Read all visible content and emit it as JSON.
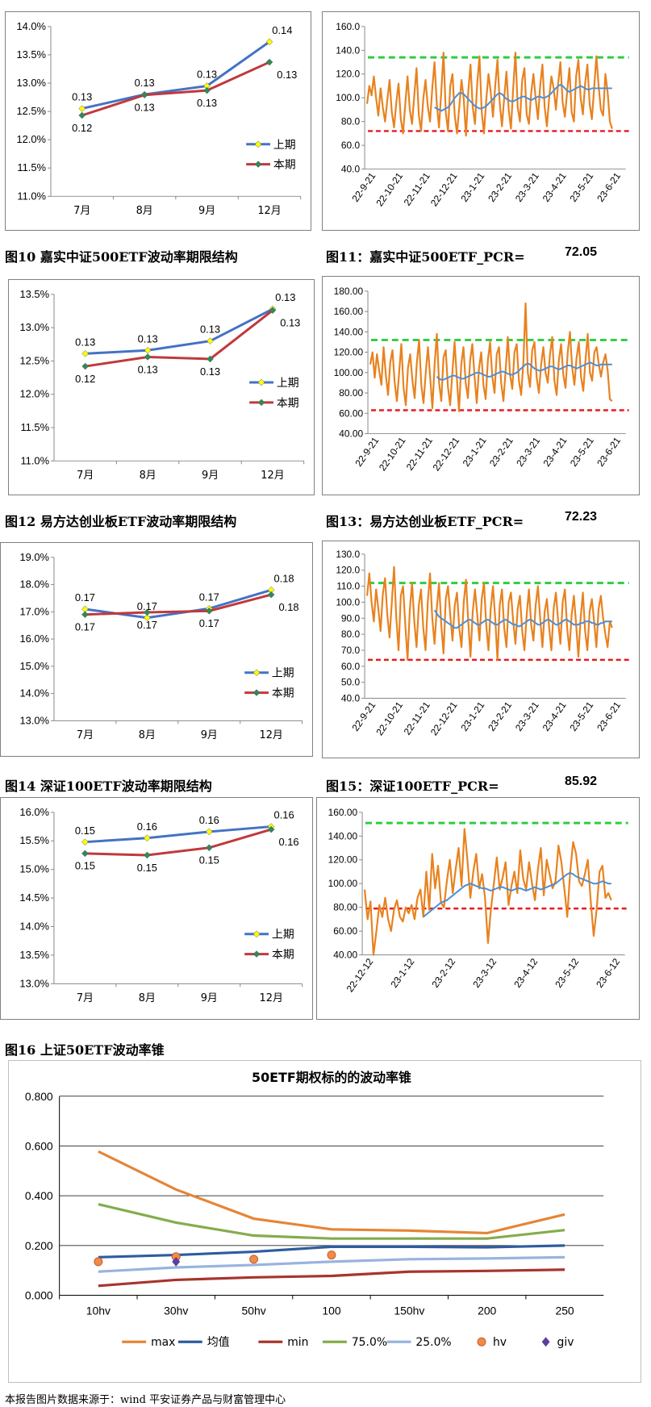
{
  "captions": {
    "fig10": "图10  嘉实中证500ETF波动率期限结构",
    "fig11": "图11：嘉实中证500ETF_PCR=",
    "fig11_value": "72.05",
    "fig12": "图12  易方达创业板ETF波动率期限结构",
    "fig13": "图13：易方达创业板ETF_PCR=",
    "fig13_value": "72.23",
    "fig14": "图14  深证100ETF波动率期限结构",
    "fig15": "图15：深证100ETF_PCR=",
    "fig15_value": "85.92",
    "fig16": "图16  上证50ETF波动率锥"
  },
  "footer": "本报告图片数据来源于：wind 平安证券产品与财富管理中心",
  "colors": {
    "blue": "#4472C4",
    "red": "#C0393B",
    "orange": "#E8821E",
    "green": "#2ECC40",
    "dash_red": "#E8191E",
    "pcr_blue": "#4B8FD6",
    "cone_orange": "#E58536",
    "cone_navy": "#2E5C9E",
    "cone_darkred": "#A8342E",
    "cone_green": "#84AC4D",
    "cone_lightblue": "#98B4DE",
    "cone_purple": "#5B3FA2"
  },
  "chart_data": [
    {
      "id": "term1",
      "type": "line",
      "categories": [
        "7月",
        "8月",
        "9月",
        "12月"
      ],
      "ylim": [
        0.11,
        0.14
      ],
      "ytick_labels": [
        "14.0%",
        "13.5%",
        "13.0%",
        "12.5%",
        "12.0%",
        "11.5%",
        "11.0%"
      ],
      "series": [
        {
          "name": "上期",
          "values": [
            0.1255,
            0.128,
            0.1295,
            0.1373
          ],
          "labels": [
            "0.13",
            "0.13",
            "0.13",
            "0.14"
          ]
        },
        {
          "name": "本期",
          "values": [
            0.1243,
            0.1279,
            0.1287,
            0.1337
          ],
          "labels": [
            "0.12",
            "0.13",
            "0.13",
            "0.13"
          ]
        }
      ],
      "legend": "bottom-right"
    },
    {
      "id": "pcr1",
      "type": "line",
      "x_tick_labels": [
        "22-9-21",
        "22-10-21",
        "22-11-21",
        "22-12-21",
        "23-1-21",
        "23-2-21",
        "23-3-21",
        "23-4-21",
        "23-5-21",
        "23-6-21"
      ],
      "ylim": [
        40,
        160
      ],
      "ytick_labels": [
        "160.0",
        "140.0",
        "120.0",
        "100.0",
        "80.0",
        "60.0",
        "40.0"
      ],
      "upper_line": 134,
      "lower_line": 72,
      "pcr": [
        95,
        110,
        102,
        118,
        100,
        85,
        108,
        92,
        80,
        98,
        115,
        88,
        75,
        96,
        112,
        82,
        70,
        95,
        118,
        90,
        78,
        102,
        125,
        86,
        72,
        99,
        115,
        93,
        80,
        108,
        130,
        95,
        75,
        105,
        138,
        88,
        72,
        110,
        120,
        85,
        70,
        92,
        115,
        99,
        68,
        105,
        128,
        92,
        78,
        112,
        135,
        88,
        70,
        98,
        120,
        105,
        84,
        110,
        132,
        96,
        76,
        100,
        122,
        90,
        74,
        108,
        138,
        92,
        80,
        115,
        125,
        86,
        78,
        104,
        120,
        99,
        82,
        110,
        128,
        92,
        76,
        100,
        118,
        108,
        90,
        112,
        130,
        96,
        84,
        105,
        125,
        88,
        80,
        118,
        132,
        100,
        86,
        112,
        128,
        95,
        82,
        108,
        135,
        110,
        90,
        85,
        120,
        105,
        80,
        74
      ],
      "ma": [
        null,
        null,
        null,
        null,
        null,
        null,
        null,
        null,
        null,
        null,
        null,
        null,
        null,
        null,
        null,
        null,
        null,
        null,
        null,
        null,
        null,
        null,
        null,
        null,
        null,
        null,
        null,
        null,
        null,
        null,
        92,
        91,
        90,
        89,
        90,
        91,
        92,
        94,
        97,
        100,
        102,
        104,
        104,
        103,
        101,
        99,
        97,
        95,
        93,
        92,
        91,
        91,
        92,
        93,
        95,
        97,
        99,
        101,
        103,
        104,
        103,
        101,
        99,
        98,
        97,
        97,
        98,
        99,
        100,
        101,
        101,
        100,
        99,
        98,
        99,
        100,
        101,
        101,
        100,
        100,
        101,
        102,
        104,
        106,
        108,
        110,
        111,
        110,
        108,
        106,
        105,
        106,
        107,
        108,
        109,
        110,
        109,
        108,
        107,
        107,
        108,
        108,
        108,
        108,
        108,
        108,
        108,
        108,
        108,
        108
      ],
      "note": "approximate series read from the plot"
    },
    {
      "id": "term2",
      "type": "line",
      "categories": [
        "7月",
        "8月",
        "9月",
        "12月"
      ],
      "ylim": [
        0.11,
        0.135
      ],
      "ytick_labels": [
        "13.5%",
        "13.0%",
        "12.5%",
        "12.0%",
        "11.5%",
        "11.0%"
      ],
      "series": [
        {
          "name": "上期",
          "values": [
            0.1261,
            0.1266,
            0.128,
            0.1328
          ],
          "labels": [
            "0.13",
            "0.13",
            "0.13",
            "0.13"
          ]
        },
        {
          "name": "本期",
          "values": [
            0.1242,
            0.1256,
            0.1253,
            0.1326
          ],
          "labels": [
            "0.12",
            "0.13",
            "0.13",
            "0.13"
          ]
        }
      ],
      "legend": "bottom-right"
    },
    {
      "id": "pcr2",
      "type": "line",
      "x_tick_labels": [
        "22-9-21",
        "22-10-21",
        "22-11-21",
        "22-12-21",
        "23-1-21",
        "23-2-21",
        "23-3-21",
        "23-4-21",
        "23-5-21",
        "23-6-21"
      ],
      "ylim": [
        40,
        180
      ],
      "ytick_labels": [
        "180.00",
        "160.00",
        "140.00",
        "120.00",
        "100.00",
        "80.00",
        "60.00",
        "40.00"
      ],
      "upper_line": 132,
      "lower_line": 63,
      "pcr": [
        108,
        120,
        95,
        118,
        102,
        88,
        125,
        98,
        78,
        110,
        122,
        90,
        72,
        100,
        128,
        85,
        68,
        105,
        118,
        92,
        75,
        110,
        132,
        88,
        70,
        100,
        125,
        95,
        65,
        108,
        138,
        90,
        72,
        115,
        122,
        86,
        68,
        100,
        130,
        95,
        62,
        108,
        125,
        90,
        75,
        112,
        128,
        96,
        70,
        104,
        120,
        88,
        74,
        112,
        130,
        96,
        80,
        118,
        125,
        90,
        72,
        102,
        135,
        98,
        84,
        120,
        128,
        92,
        78,
        110,
        168,
        100,
        86,
        122,
        130,
        95,
        80,
        108,
        125,
        100,
        90,
        118,
        135,
        92,
        78,
        112,
        128,
        98,
        85,
        120,
        140,
        105,
        88,
        115,
        130,
        96,
        82,
        112,
        138,
        100,
        92,
        120,
        125,
        108,
        96,
        110,
        118,
        102,
        74,
        72
      ],
      "ma": [
        null,
        null,
        null,
        null,
        null,
        null,
        null,
        null,
        null,
        null,
        null,
        null,
        null,
        null,
        null,
        null,
        null,
        null,
        null,
        null,
        null,
        null,
        null,
        null,
        null,
        null,
        null,
        null,
        null,
        null,
        96,
        94,
        93,
        93,
        94,
        95,
        96,
        97,
        97,
        96,
        95,
        94,
        94,
        95,
        96,
        97,
        98,
        99,
        100,
        100,
        99,
        98,
        97,
        96,
        96,
        97,
        98,
        99,
        100,
        101,
        101,
        100,
        99,
        98,
        98,
        99,
        100,
        102,
        104,
        106,
        108,
        109,
        108,
        106,
        104,
        103,
        102,
        102,
        103,
        104,
        105,
        106,
        106,
        105,
        104,
        103,
        104,
        105,
        106,
        107,
        107,
        106,
        105,
        104,
        105,
        106,
        107,
        108,
        109,
        110,
        109,
        108,
        107,
        107,
        108,
        108,
        108,
        108,
        108,
        108
      ],
      "note": "approximate series read from the plot"
    },
    {
      "id": "term3",
      "type": "line",
      "categories": [
        "7月",
        "8月",
        "9月",
        "12月"
      ],
      "ylim": [
        0.13,
        0.19
      ],
      "ytick_labels": [
        "19.0%",
        "18.0%",
        "17.0%",
        "16.0%",
        "15.0%",
        "14.0%",
        "13.0%"
      ],
      "series": [
        {
          "name": "上期",
          "values": [
            0.171,
            0.1678,
            0.1712,
            0.178
          ],
          "labels": [
            "0.17",
            "0.17",
            "0.17",
            "0.18"
          ]
        },
        {
          "name": "本期",
          "values": [
            0.169,
            0.1698,
            0.1703,
            0.1763
          ],
          "labels": [
            "0.17",
            "0.17",
            "0.17",
            "0.18"
          ]
        }
      ],
      "legend": "bottom-right"
    },
    {
      "id": "pcr3",
      "type": "line",
      "x_tick_labels": [
        "22-9-21",
        "22-10-21",
        "22-11-21",
        "22-12-21",
        "23-1-21",
        "23-2-21",
        "23-3-21",
        "23-4-21",
        "23-5-21",
        "23-6-21"
      ],
      "ylim": [
        40,
        130
      ],
      "ytick_labels": [
        "130.0",
        "120.0",
        "110.0",
        "100.0",
        "90.0",
        "80.0",
        "70.0",
        "60.0",
        "50.0",
        "40.0"
      ],
      "upper_line": 112,
      "lower_line": 64,
      "pcr": [
        104,
        118,
        100,
        88,
        108,
        96,
        82,
        105,
        115,
        92,
        78,
        100,
        122,
        90,
        70,
        104,
        110,
        86,
        64,
        95,
        112,
        88,
        72,
        98,
        108,
        84,
        70,
        100,
        118,
        90,
        74,
        96,
        112,
        86,
        68,
        102,
        110,
        92,
        76,
        98,
        106,
        84,
        72,
        100,
        114,
        88,
        66,
        94,
        108,
        92,
        76,
        102,
        112,
        86,
        70,
        96,
        110,
        90,
        64,
        98,
        108,
        84,
        72,
        100,
        106,
        88,
        74,
        96,
        104,
        82,
        70,
        92,
        108,
        86,
        76,
        98,
        110,
        90,
        72,
        94,
        102,
        84,
        70,
        96,
        106,
        88,
        74,
        100,
        108,
        84,
        70,
        92,
        104,
        86,
        66,
        90,
        106,
        82,
        70,
        94,
        102,
        88,
        72,
        96,
        104,
        90,
        80,
        72,
        88,
        84
      ],
      "ma": [
        null,
        null,
        null,
        null,
        null,
        null,
        null,
        null,
        null,
        null,
        null,
        null,
        null,
        null,
        null,
        null,
        null,
        null,
        null,
        null,
        null,
        null,
        null,
        null,
        null,
        null,
        null,
        null,
        null,
        null,
        95,
        93,
        91,
        90,
        89,
        88,
        87,
        86,
        85,
        84,
        84,
        85,
        86,
        87,
        88,
        89,
        89,
        88,
        87,
        86,
        86,
        87,
        88,
        89,
        89,
        88,
        87,
        86,
        86,
        87,
        88,
        89,
        89,
        88,
        87,
        86,
        86,
        85,
        85,
        86,
        87,
        88,
        89,
        89,
        88,
        87,
        86,
        86,
        87,
        88,
        89,
        89,
        88,
        87,
        86,
        86,
        87,
        88,
        89,
        89,
        88,
        87,
        86,
        86,
        86,
        87,
        87,
        88,
        88,
        88,
        87,
        87,
        86,
        86,
        87,
        87,
        88,
        88,
        88,
        88
      ],
      "note": "approximate series read from the plot"
    },
    {
      "id": "term4",
      "type": "line",
      "categories": [
        "7月",
        "8月",
        "9月",
        "12月"
      ],
      "ylim": [
        0.13,
        0.16
      ],
      "ytick_labels": [
        "16.0%",
        "15.5%",
        "15.0%",
        "14.5%",
        "14.0%",
        "13.5%",
        "13.0%"
      ],
      "series": [
        {
          "name": "上期",
          "values": [
            0.1548,
            0.1555,
            0.1566,
            0.1575
          ],
          "labels": [
            "0.15",
            "0.16",
            "0.16",
            "0.16"
          ]
        },
        {
          "name": "本期",
          "values": [
            0.1528,
            0.1525,
            0.1538,
            0.157
          ],
          "labels": [
            "0.15",
            "0.15",
            "0.15",
            "0.16"
          ]
        }
      ],
      "legend": "bottom-right"
    },
    {
      "id": "pcr4",
      "type": "line",
      "x_tick_labels": [
        "22-12-12",
        "23-1-12",
        "23-2-12",
        "23-3-12",
        "23-4-12",
        "23-5-12",
        "23-6-12"
      ],
      "ylim": [
        40,
        160
      ],
      "ytick_labels": [
        "160.00",
        "140.00",
        "120.00",
        "100.00",
        "80.00",
        "60.00",
        "40.00"
      ],
      "upper_line": 151,
      "lower_line": 79,
      "pcr": [
        95,
        70,
        85,
        40,
        60,
        82,
        72,
        88,
        70,
        60,
        78,
        86,
        72,
        68,
        80,
        75,
        82,
        70,
        88,
        95,
        72,
        110,
        78,
        125,
        96,
        115,
        84,
        80,
        102,
        120,
        92,
        112,
        130,
        98,
        146,
        120,
        88,
        110,
        125,
        96,
        108,
        88,
        50,
        78,
        100,
        122,
        95,
        105,
        118,
        82,
        98,
        110,
        92,
        128,
        104,
        95,
        118,
        100,
        86,
        112,
        130,
        90,
        120,
        108,
        96,
        102,
        132,
        118,
        96,
        72,
        110,
        135,
        125,
        102,
        98,
        108,
        120,
        85,
        56,
        78,
        110,
        115,
        88,
        92,
        86
      ],
      "ma": [
        null,
        null,
        null,
        null,
        null,
        null,
        null,
        null,
        null,
        null,
        null,
        null,
        null,
        null,
        null,
        null,
        null,
        null,
        null,
        null,
        72,
        74,
        76,
        78,
        80,
        82,
        84,
        85,
        86,
        88,
        90,
        92,
        94,
        96,
        98,
        99,
        100,
        99,
        98,
        97,
        96,
        96,
        95,
        94,
        95,
        96,
        97,
        97,
        96,
        95,
        94,
        95,
        96,
        96,
        95,
        94,
        95,
        96,
        97,
        96,
        95,
        96,
        97,
        98,
        99,
        100,
        102,
        104,
        106,
        108,
        109,
        108,
        106,
        105,
        104,
        103,
        102,
        101,
        100,
        100,
        101,
        102,
        101,
        100,
        100
      ]
    },
    {
      "id": "cone",
      "type": "line",
      "title": "50ETF期权标的的波动率锥",
      "categories": [
        "10hv",
        "30hv",
        "50hv",
        "100",
        "150hv",
        "200",
        "250"
      ],
      "ylim": [
        0,
        0.8
      ],
      "ytick_labels": [
        "0.800",
        "0.600",
        "0.400",
        "0.200",
        "0.000"
      ],
      "series": [
        {
          "name": "max",
          "values": [
            0.578,
            0.425,
            0.308,
            0.265,
            0.26,
            0.25,
            0.325
          ]
        },
        {
          "name": "均值",
          "values": [
            0.153,
            0.162,
            0.175,
            0.195,
            0.195,
            0.193,
            0.2
          ]
        },
        {
          "name": "min",
          "values": [
            0.038,
            0.062,
            0.072,
            0.078,
            0.095,
            0.098,
            0.103
          ]
        },
        {
          "name": "75.0%",
          "values": [
            0.366,
            0.292,
            0.24,
            0.228,
            0.228,
            0.228,
            0.262
          ]
        },
        {
          "name": "25.0%",
          "values": [
            0.095,
            0.112,
            0.122,
            0.135,
            0.145,
            0.148,
            0.153
          ]
        },
        {
          "name": "hv",
          "values": [
            0.135,
            0.155,
            0.145,
            0.162,
            null,
            null,
            null
          ],
          "marker": "circle"
        },
        {
          "name": "giv",
          "values": [
            null,
            0.135,
            null,
            null,
            null,
            null,
            null
          ],
          "marker": "diamond"
        }
      ],
      "legend": "bottom"
    }
  ]
}
